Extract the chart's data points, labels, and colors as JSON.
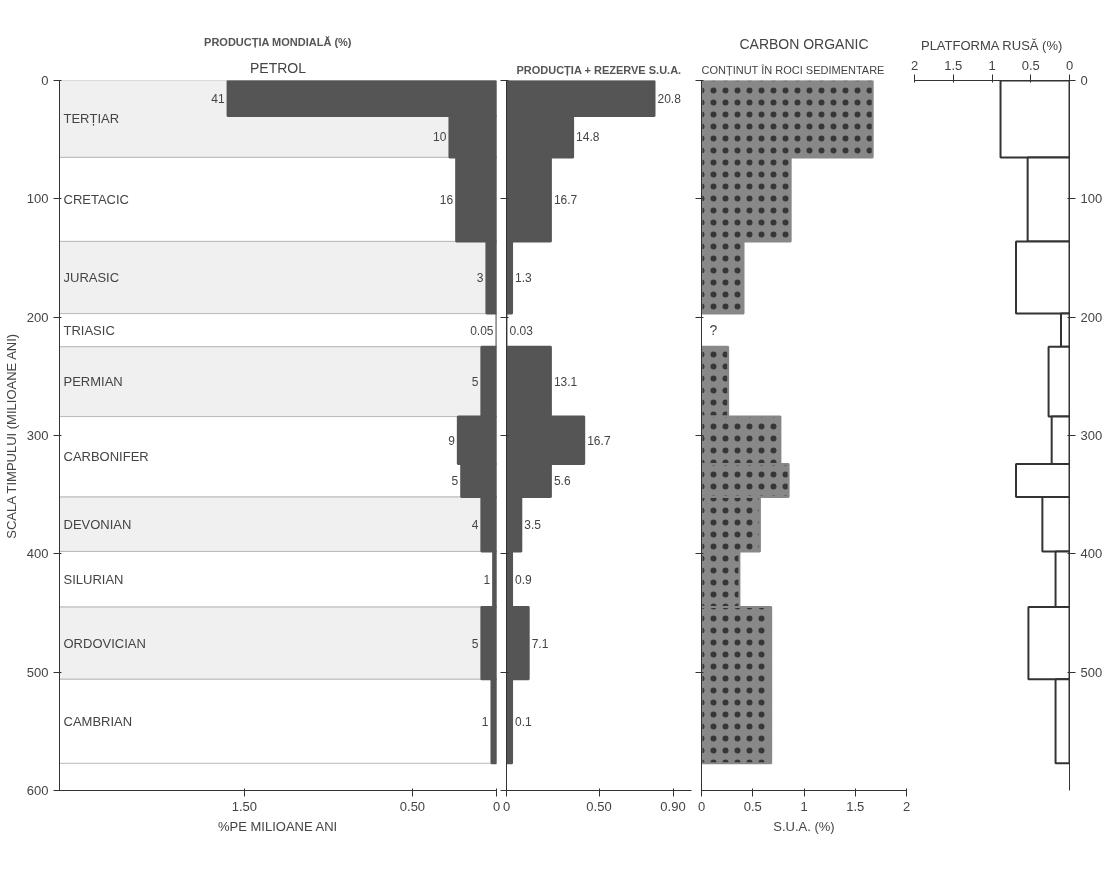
{
  "chart_data": [
    {
      "type": "histogram",
      "orientation": "horizontal",
      "title": "PETROL",
      "ylabel": "SCALA TIMPULUI (MILIOANE ANI)",
      "xlabel": "%PE MILIOANE ANI",
      "legend": "top",
      "bins": [
        0,
        30,
        65,
        136,
        197,
        225,
        284,
        324,
        352,
        398,
        445,
        506,
        577
      ],
      "series": [
        {
          "name": "PRODUCȚIA MONDIALĂ (%)",
          "color": "#555555",
          "values": [
            1.6,
            0.28,
            0.24,
            0.06,
            0,
            0.09,
            0.23,
            0.21,
            0.09,
            0.02,
            0.09,
            0.03
          ]
        }
      ],
      "annotations": [
        {
          "text": "41",
          "x": 1.6,
          "y": 15
        },
        {
          "text": "10",
          "x": 0.28,
          "y": 47.5
        },
        {
          "text": "16",
          "x": 0.24,
          "y": 100.5
        },
        {
          "text": "3",
          "x": 0.06,
          "y": 166.5
        },
        {
          "text": "0.05",
          "x": 0,
          "y": 211
        },
        {
          "text": "5",
          "x": 0.09,
          "y": 254.5
        },
        {
          "text": "9",
          "x": 0.23,
          "y": 304
        },
        {
          "text": "5",
          "x": 0.21,
          "y": 338
        },
        {
          "text": "4",
          "x": 0.09,
          "y": 375
        },
        {
          "text": "1",
          "x": 0.02,
          "y": 421.5
        },
        {
          "text": "5",
          "x": 0.09,
          "y": 475.5
        },
        {
          "text": "1",
          "x": 0.03,
          "y": 541.5
        }
      ],
      "xlim": [
        2.6,
        0
      ],
      "xticks": [
        {
          "value": 1.5,
          "label": "1.50"
        },
        {
          "value": 0.5,
          "label": "0.50"
        },
        0
      ],
      "ylim": [
        600,
        0
      ],
      "yticks": [
        0,
        100,
        200,
        300,
        400,
        500,
        600
      ],
      "bands": [
        {
          "axis": "y",
          "from": 0,
          "to": 65,
          "label": "TERȚIAR"
        },
        {
          "axis": "y",
          "from": 65,
          "to": 136,
          "label": "CRETACIC"
        },
        {
          "axis": "y",
          "from": 136,
          "to": 197,
          "label": "JURASIC"
        },
        {
          "axis": "y",
          "from": 197,
          "to": 225,
          "label": "TRIASIC"
        },
        {
          "axis": "y",
          "from": 225,
          "to": 284,
          "label": "PERMIAN"
        },
        {
          "axis": "y",
          "from": 284,
          "to": 352,
          "label": "CARBONIFER"
        },
        {
          "axis": "y",
          "from": 352,
          "to": 398,
          "label": "DEVONIAN"
        },
        {
          "axis": "y",
          "from": 398,
          "to": 445,
          "label": "SILURIAN"
        },
        {
          "axis": "y",
          "from": 445,
          "to": 506,
          "label": "ORDOVICIAN"
        },
        {
          "axis": "y",
          "from": 506,
          "to": 577,
          "label": "CAMBRIAN"
        }
      ]
    },
    {
      "type": "histogram",
      "orientation": "horizontal",
      "legend": "top",
      "bins": [
        0,
        30,
        65,
        136,
        197,
        225,
        284,
        324,
        352,
        398,
        445,
        506,
        577
      ],
      "series": [
        {
          "name": "PRODUCȚIA + REZERVE S.U.A.",
          "color": "#555555",
          "values": [
            0.8,
            0.36,
            0.24,
            0.03,
            0,
            0.24,
            0.42,
            0.24,
            0.08,
            0.03,
            0.12,
            0.03
          ]
        }
      ],
      "annotations": [
        {
          "text": "20.8",
          "x": 0.8,
          "y": 15
        },
        {
          "text": "14.8",
          "x": 0.36,
          "y": 47.5
        },
        {
          "text": "16.7",
          "x": 0.24,
          "y": 100.5
        },
        {
          "text": "1.3",
          "x": 0.03,
          "y": 166.5
        },
        {
          "text": "0.03",
          "x": 0,
          "y": 211
        },
        {
          "text": "13.1",
          "x": 0.24,
          "y": 254.5
        },
        {
          "text": "16.7",
          "x": 0.42,
          "y": 304
        },
        {
          "text": "5.6",
          "x": 0.24,
          "y": 338
        },
        {
          "text": "3.5",
          "x": 0.08,
          "y": 375
        },
        {
          "text": "0.9",
          "x": 0.03,
          "y": 421.5
        },
        {
          "text": "7.1",
          "x": 0.12,
          "y": 475.5
        },
        {
          "text": "0.1",
          "x": 0.03,
          "y": 541.5
        }
      ],
      "xlim": [
        0,
        1.0
      ],
      "xticks": [
        0,
        {
          "value": 0.5,
          "label": "0.50"
        },
        {
          "value": 0.9,
          "label": "0.90"
        }
      ],
      "ylim": [
        600,
        0
      ],
      "yticks": [
        0,
        100,
        200,
        300,
        400,
        500,
        600
      ],
      "tick_labels": "x"
    },
    {
      "type": "histogram",
      "orientation": "horizontal",
      "title": "CARBON ORGANIC",
      "subtitle": "CONȚINUT ÎN ROCI SEDIMENTARE",
      "xlabel": "S.U.A. (%)",
      "color": "#888888",
      "bins": [
        0,
        65,
        136,
        197,
        225,
        284,
        324,
        352,
        398,
        445,
        577
      ],
      "values": [
        1.67,
        0.87,
        0.41,
        null,
        0.26,
        0.77,
        0.85,
        0.57,
        0.37,
        0.68
      ],
      "xlim": [
        0,
        2
      ],
      "xticks": [
        0,
        0.5,
        1,
        1.5,
        2
      ],
      "ylim": [
        600,
        0
      ],
      "yticks": [
        0,
        100,
        200,
        300,
        400,
        500
      ],
      "tick_labels": "x",
      "annotations": [
        "?"
      ]
    },
    {
      "type": "histogram",
      "orientation": "horizontal",
      "xlabel": "PLATFORMA RUSĂ (%)",
      "color": "#ffffff",
      "bins": [
        0,
        65,
        136,
        197,
        225,
        284,
        324,
        352,
        398,
        445,
        506,
        577
      ],
      "values": [
        0.89,
        0.54,
        0.69,
        0.11,
        0.27,
        0.23,
        0.69,
        0.35,
        0.18,
        0.53,
        0.18
      ],
      "xlim": [
        2,
        0
      ],
      "xticks": [
        2,
        1.5,
        1,
        0.5,
        0
      ],
      "ylim": [
        600,
        0
      ],
      "yticks": [
        0,
        100,
        200,
        300,
        400,
        500
      ]
    }
  ]
}
